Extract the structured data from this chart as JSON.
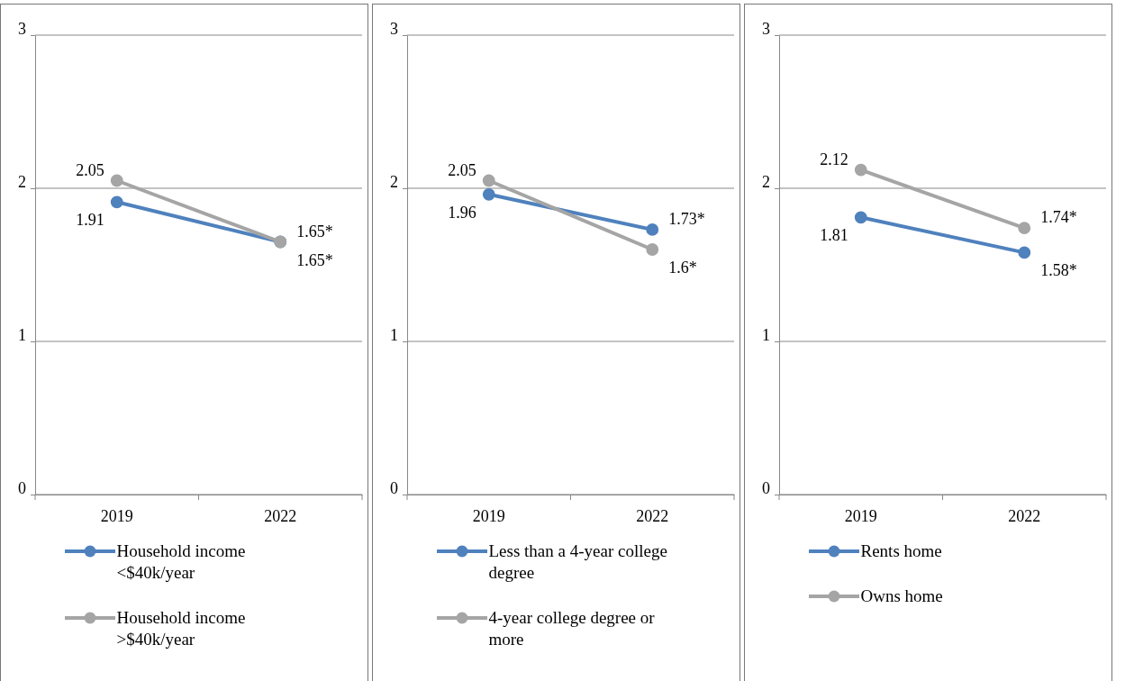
{
  "chart_data": [
    {
      "type": "line",
      "categories": [
        "2019",
        "2022"
      ],
      "ylim": [
        0,
        3
      ],
      "yticks": [
        0,
        1,
        2,
        3
      ],
      "grid": "y",
      "legend": "bottom",
      "marker": "circle",
      "series": [
        {
          "name": "Household income <$40k/year",
          "color": "#4f81bd",
          "values": [
            1.91,
            1.65
          ],
          "value_labels": [
            "1.91",
            "1.65*"
          ]
        },
        {
          "name": "Household income >$40k/year",
          "color": "#a5a5a5",
          "values": [
            2.05,
            1.65
          ],
          "value_labels": [
            "2.05",
            "1.65*"
          ]
        }
      ]
    },
    {
      "type": "line",
      "categories": [
        "2019",
        "2022"
      ],
      "ylim": [
        0,
        3
      ],
      "yticks": [
        0,
        1,
        2,
        3
      ],
      "grid": "y",
      "legend": "bottom",
      "marker": "circle",
      "series": [
        {
          "name": "Less than a 4-year college degree",
          "color": "#4f81bd",
          "values": [
            1.96,
            1.73
          ],
          "value_labels": [
            "1.96",
            "1.73*"
          ]
        },
        {
          "name": "4-year college degree or more",
          "color": "#a5a5a5",
          "values": [
            2.05,
            1.6
          ],
          "value_labels": [
            "2.05",
            "1.6*"
          ]
        }
      ]
    },
    {
      "type": "line",
      "categories": [
        "2019",
        "2022"
      ],
      "ylim": [
        0,
        3
      ],
      "yticks": [
        0,
        1,
        2,
        3
      ],
      "grid": "y",
      "legend": "bottom",
      "marker": "circle",
      "series": [
        {
          "name": "Rents home",
          "color": "#4f81bd",
          "values": [
            1.81,
            1.58
          ],
          "value_labels": [
            "1.81",
            "1.58*"
          ]
        },
        {
          "name": "Owns home",
          "color": "#a5a5a5",
          "values": [
            2.12,
            1.74
          ],
          "value_labels": [
            "2.12",
            "1.74*"
          ]
        }
      ]
    }
  ]
}
